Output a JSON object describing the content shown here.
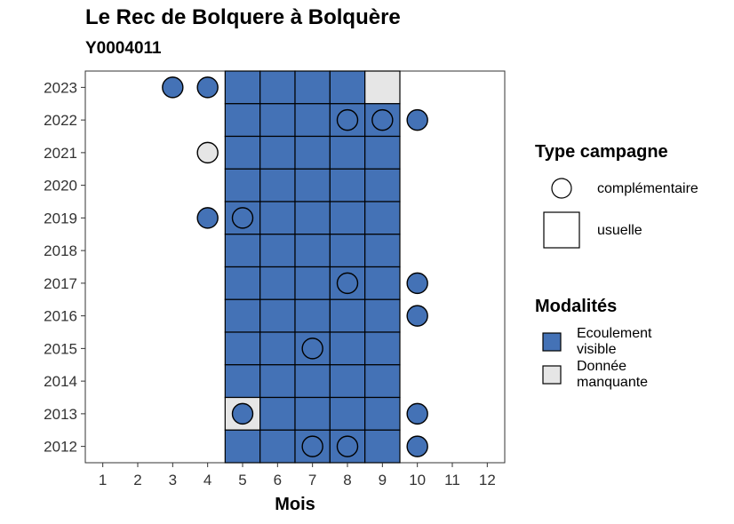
{
  "chart_data": {
    "type": "heatmap",
    "title": "Le Rec de Bolquere à Bolquère",
    "subtitle": "Y0004011",
    "xlabel": "Mois",
    "ylabel": "",
    "x_ticks": [
      "1",
      "2",
      "3",
      "4",
      "5",
      "6",
      "7",
      "8",
      "9",
      "10",
      "11",
      "12"
    ],
    "y_ticks": [
      "2012",
      "2013",
      "2014",
      "2015",
      "2016",
      "2017",
      "2018",
      "2019",
      "2020",
      "2021",
      "2022",
      "2023"
    ],
    "legend_type": {
      "title": "Type campagne",
      "entries": [
        {
          "key": "complementaire",
          "label": "complémentaire",
          "shape": "circle"
        },
        {
          "key": "usuelle",
          "label": "usuelle",
          "shape": "square"
        }
      ]
    },
    "legend_modalites": {
      "title": "Modalités",
      "entries": [
        {
          "key": "ecoulement",
          "label": "Ecoulement\nvisible",
          "color": "#4472B6"
        },
        {
          "key": "manquante",
          "label": "Donnée\nmanquante",
          "color": "#E6E6E6"
        }
      ]
    },
    "usuelle": [
      {
        "year": 2023,
        "month": 5,
        "mod": "ecoulement"
      },
      {
        "year": 2023,
        "month": 6,
        "mod": "ecoulement"
      },
      {
        "year": 2023,
        "month": 7,
        "mod": "ecoulement"
      },
      {
        "year": 2023,
        "month": 8,
        "mod": "ecoulement"
      },
      {
        "year": 2023,
        "month": 9,
        "mod": "manquante"
      },
      {
        "year": 2022,
        "month": 5,
        "mod": "ecoulement"
      },
      {
        "year": 2022,
        "month": 6,
        "mod": "ecoulement"
      },
      {
        "year": 2022,
        "month": 7,
        "mod": "ecoulement"
      },
      {
        "year": 2022,
        "month": 8,
        "mod": "ecoulement"
      },
      {
        "year": 2022,
        "month": 9,
        "mod": "ecoulement"
      },
      {
        "year": 2021,
        "month": 5,
        "mod": "ecoulement"
      },
      {
        "year": 2021,
        "month": 6,
        "mod": "ecoulement"
      },
      {
        "year": 2021,
        "month": 7,
        "mod": "ecoulement"
      },
      {
        "year": 2021,
        "month": 8,
        "mod": "ecoulement"
      },
      {
        "year": 2021,
        "month": 9,
        "mod": "ecoulement"
      },
      {
        "year": 2020,
        "month": 5,
        "mod": "ecoulement"
      },
      {
        "year": 2020,
        "month": 6,
        "mod": "ecoulement"
      },
      {
        "year": 2020,
        "month": 7,
        "mod": "ecoulement"
      },
      {
        "year": 2020,
        "month": 8,
        "mod": "ecoulement"
      },
      {
        "year": 2020,
        "month": 9,
        "mod": "ecoulement"
      },
      {
        "year": 2019,
        "month": 5,
        "mod": "ecoulement"
      },
      {
        "year": 2019,
        "month": 6,
        "mod": "ecoulement"
      },
      {
        "year": 2019,
        "month": 7,
        "mod": "ecoulement"
      },
      {
        "year": 2019,
        "month": 8,
        "mod": "ecoulement"
      },
      {
        "year": 2019,
        "month": 9,
        "mod": "ecoulement"
      },
      {
        "year": 2018,
        "month": 5,
        "mod": "ecoulement"
      },
      {
        "year": 2018,
        "month": 6,
        "mod": "ecoulement"
      },
      {
        "year": 2018,
        "month": 7,
        "mod": "ecoulement"
      },
      {
        "year": 2018,
        "month": 8,
        "mod": "ecoulement"
      },
      {
        "year": 2018,
        "month": 9,
        "mod": "ecoulement"
      },
      {
        "year": 2017,
        "month": 5,
        "mod": "ecoulement"
      },
      {
        "year": 2017,
        "month": 6,
        "mod": "ecoulement"
      },
      {
        "year": 2017,
        "month": 7,
        "mod": "ecoulement"
      },
      {
        "year": 2017,
        "month": 8,
        "mod": "ecoulement"
      },
      {
        "year": 2017,
        "month": 9,
        "mod": "ecoulement"
      },
      {
        "year": 2016,
        "month": 5,
        "mod": "ecoulement"
      },
      {
        "year": 2016,
        "month": 6,
        "mod": "ecoulement"
      },
      {
        "year": 2016,
        "month": 7,
        "mod": "ecoulement"
      },
      {
        "year": 2016,
        "month": 8,
        "mod": "ecoulement"
      },
      {
        "year": 2016,
        "month": 9,
        "mod": "ecoulement"
      },
      {
        "year": 2015,
        "month": 5,
        "mod": "ecoulement"
      },
      {
        "year": 2015,
        "month": 6,
        "mod": "ecoulement"
      },
      {
        "year": 2015,
        "month": 7,
        "mod": "ecoulement"
      },
      {
        "year": 2015,
        "month": 8,
        "mod": "ecoulement"
      },
      {
        "year": 2015,
        "month": 9,
        "mod": "ecoulement"
      },
      {
        "year": 2014,
        "month": 5,
        "mod": "ecoulement"
      },
      {
        "year": 2014,
        "month": 6,
        "mod": "ecoulement"
      },
      {
        "year": 2014,
        "month": 7,
        "mod": "ecoulement"
      },
      {
        "year": 2014,
        "month": 8,
        "mod": "ecoulement"
      },
      {
        "year": 2014,
        "month": 9,
        "mod": "ecoulement"
      },
      {
        "year": 2013,
        "month": 5,
        "mod": "manquante"
      },
      {
        "year": 2013,
        "month": 6,
        "mod": "ecoulement"
      },
      {
        "year": 2013,
        "month": 7,
        "mod": "ecoulement"
      },
      {
        "year": 2013,
        "month": 8,
        "mod": "ecoulement"
      },
      {
        "year": 2013,
        "month": 9,
        "mod": "ecoulement"
      },
      {
        "year": 2012,
        "month": 5,
        "mod": "ecoulement"
      },
      {
        "year": 2012,
        "month": 6,
        "mod": "ecoulement"
      },
      {
        "year": 2012,
        "month": 7,
        "mod": "ecoulement"
      },
      {
        "year": 2012,
        "month": 8,
        "mod": "ecoulement"
      },
      {
        "year": 2012,
        "month": 9,
        "mod": "ecoulement"
      }
    ],
    "complementaire": [
      {
        "year": 2023,
        "month": 3,
        "mod": "ecoulement"
      },
      {
        "year": 2023,
        "month": 4,
        "mod": "ecoulement"
      },
      {
        "year": 2022,
        "month": 8,
        "mod": "ecoulement"
      },
      {
        "year": 2022,
        "month": 9,
        "mod": "ecoulement"
      },
      {
        "year": 2022,
        "month": 10,
        "mod": "ecoulement"
      },
      {
        "year": 2021,
        "month": 4,
        "mod": "manquante"
      },
      {
        "year": 2019,
        "month": 4,
        "mod": "ecoulement"
      },
      {
        "year": 2019,
        "month": 5,
        "mod": "ecoulement"
      },
      {
        "year": 2017,
        "month": 8,
        "mod": "ecoulement"
      },
      {
        "year": 2017,
        "month": 10,
        "mod": "ecoulement"
      },
      {
        "year": 2016,
        "month": 10,
        "mod": "ecoulement"
      },
      {
        "year": 2015,
        "month": 7,
        "mod": "ecoulement"
      },
      {
        "year": 2013,
        "month": 5,
        "mod": "ecoulement"
      },
      {
        "year": 2013,
        "month": 10,
        "mod": "ecoulement"
      },
      {
        "year": 2012,
        "month": 7,
        "mod": "ecoulement"
      },
      {
        "year": 2012,
        "month": 8,
        "mod": "ecoulement"
      },
      {
        "year": 2012,
        "month": 10,
        "mod": "ecoulement"
      }
    ],
    "xlim": [
      0.5,
      12.5
    ],
    "ylim": [
      2011.5,
      2023.5
    ],
    "grid": false,
    "legend_position": "right"
  }
}
